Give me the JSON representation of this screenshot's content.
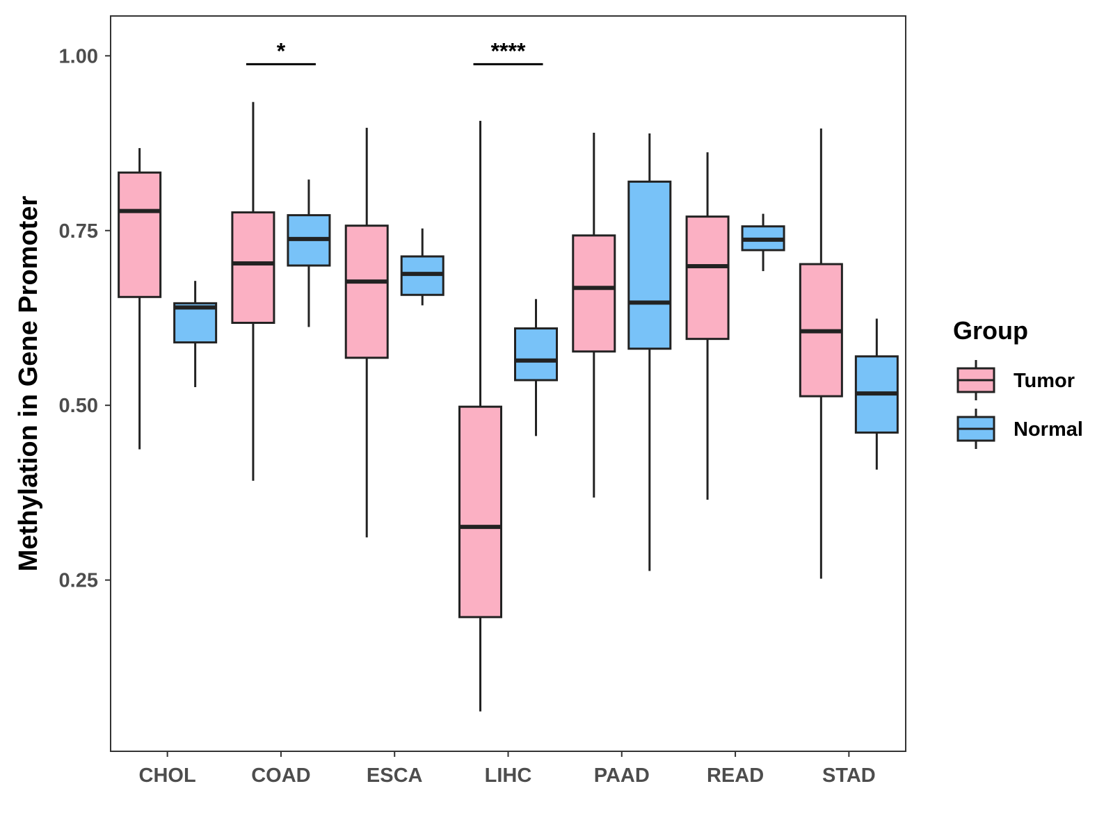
{
  "chart_data": {
    "type": "boxplot",
    "ylabel": "Methylation in Gene Promoter",
    "xlabel": "",
    "ylim": [
      0.005,
      1.057
    ],
    "yticks": [
      0.25,
      0.5,
      0.75,
      1.0
    ],
    "ytick_labels": [
      "0.25",
      "0.50",
      "0.75",
      "1.00"
    ],
    "categories": [
      "CHOL",
      "COAD",
      "ESCA",
      "LIHC",
      "PAAD",
      "READ",
      "STAD"
    ],
    "legend": {
      "title": "Group",
      "position": "right",
      "entries": [
        {
          "name": "Tumor",
          "color": "#FBB0C3"
        },
        {
          "name": "Normal",
          "color": "#78C2F8"
        }
      ]
    },
    "series": [
      {
        "name": "Tumor",
        "color": "#FBB0C3",
        "boxes": [
          {
            "min": 0.437,
            "q1": 0.655,
            "median": 0.778,
            "q3": 0.833,
            "max": 0.868
          },
          {
            "min": 0.392,
            "q1": 0.618,
            "median": 0.703,
            "q3": 0.776,
            "max": 0.934
          },
          {
            "min": 0.311,
            "q1": 0.568,
            "median": 0.677,
            "q3": 0.757,
            "max": 0.897
          },
          {
            "min": 0.062,
            "q1": 0.197,
            "median": 0.326,
            "q3": 0.498,
            "max": 0.907
          },
          {
            "min": 0.368,
            "q1": 0.577,
            "median": 0.668,
            "q3": 0.743,
            "max": 0.89
          },
          {
            "min": 0.365,
            "q1": 0.595,
            "median": 0.699,
            "q3": 0.77,
            "max": 0.862
          },
          {
            "min": 0.252,
            "q1": 0.513,
            "median": 0.606,
            "q3": 0.702,
            "max": 0.896
          }
        ]
      },
      {
        "name": "Normal",
        "color": "#78C2F8",
        "boxes": [
          {
            "min": 0.526,
            "q1": 0.59,
            "median": 0.64,
            "q3": 0.646,
            "max": 0.678
          },
          {
            "min": 0.612,
            "q1": 0.7,
            "median": 0.738,
            "q3": 0.772,
            "max": 0.823
          },
          {
            "min": 0.643,
            "q1": 0.658,
            "median": 0.688,
            "q3": 0.713,
            "max": 0.753
          },
          {
            "min": 0.456,
            "q1": 0.536,
            "median": 0.564,
            "q3": 0.61,
            "max": 0.652
          },
          {
            "min": 0.263,
            "q1": 0.581,
            "median": 0.647,
            "q3": 0.82,
            "max": 0.889
          },
          {
            "min": 0.692,
            "q1": 0.722,
            "median": 0.737,
            "q3": 0.756,
            "max": 0.774
          },
          {
            "min": 0.408,
            "q1": 0.461,
            "median": 0.517,
            "q3": 0.57,
            "max": 0.624
          }
        ]
      }
    ],
    "annotations": [
      {
        "category": "COAD",
        "text": "*",
        "y": 0.988
      },
      {
        "category": "LIHC",
        "text": "****",
        "y": 0.988
      }
    ]
  }
}
